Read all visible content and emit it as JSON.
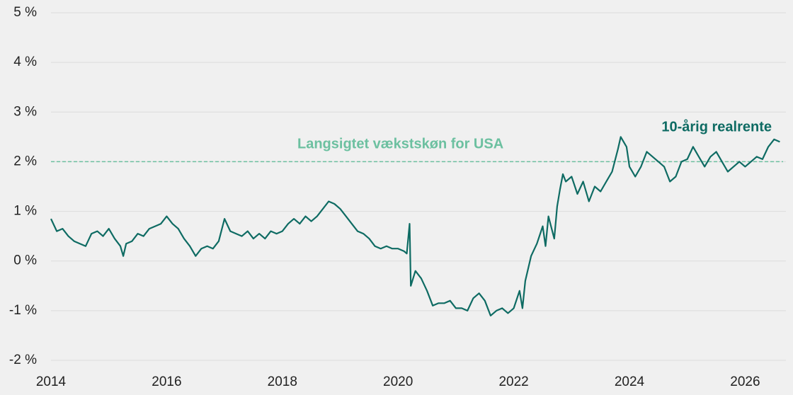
{
  "chart_data": {
    "type": "line",
    "xlim": [
      2014,
      2026.7
    ],
    "xticks": [
      2014,
      2016,
      2018,
      2020,
      2022,
      2024,
      2026
    ],
    "ylim": [
      -2,
      5
    ],
    "yticks": [
      {
        "value": -2,
        "label": "-2 %"
      },
      {
        "value": -1,
        "label": "-1 %"
      },
      {
        "value": 0,
        "label": "0 %"
      },
      {
        "value": 1,
        "label": "1 %"
      },
      {
        "value": 2,
        "label": "2 %"
      },
      {
        "value": 3,
        "label": "3 %"
      },
      {
        "value": 4,
        "label": "4 %"
      },
      {
        "value": 5,
        "label": "5 %"
      }
    ],
    "grid": true,
    "reference_line": {
      "value": 2,
      "label": "Langsigtet vækstskøn for USA",
      "color": "#6cc0a0"
    },
    "series": [
      {
        "name": "10-årig realrente",
        "color": "#0e6b63",
        "x": [
          2014.0,
          2014.1,
          2014.2,
          2014.3,
          2014.4,
          2014.5,
          2014.6,
          2014.7,
          2014.8,
          2014.9,
          2015.0,
          2015.1,
          2015.2,
          2015.25,
          2015.3,
          2015.4,
          2015.5,
          2015.6,
          2015.7,
          2015.8,
          2015.9,
          2016.0,
          2016.1,
          2016.2,
          2016.3,
          2016.4,
          2016.5,
          2016.6,
          2016.7,
          2016.8,
          2016.9,
          2017.0,
          2017.1,
          2017.2,
          2017.3,
          2017.4,
          2017.5,
          2017.6,
          2017.7,
          2017.8,
          2017.9,
          2018.0,
          2018.1,
          2018.2,
          2018.3,
          2018.4,
          2018.5,
          2018.6,
          2018.7,
          2018.8,
          2018.9,
          2019.0,
          2019.1,
          2019.2,
          2019.3,
          2019.4,
          2019.5,
          2019.6,
          2019.7,
          2019.8,
          2019.9,
          2020.0,
          2020.1,
          2020.15,
          2020.2,
          2020.22,
          2020.3,
          2020.4,
          2020.5,
          2020.6,
          2020.7,
          2020.8,
          2020.9,
          2021.0,
          2021.1,
          2021.2,
          2021.3,
          2021.4,
          2021.5,
          2021.6,
          2021.7,
          2021.8,
          2021.9,
          2022.0,
          2022.1,
          2022.15,
          2022.2,
          2022.3,
          2022.4,
          2022.5,
          2022.55,
          2022.6,
          2022.7,
          2022.75,
          2022.8,
          2022.85,
          2022.9,
          2023.0,
          2023.1,
          2023.2,
          2023.3,
          2023.4,
          2023.5,
          2023.6,
          2023.7,
          2023.8,
          2023.85,
          2023.95,
          2024.0,
          2024.1,
          2024.2,
          2024.3,
          2024.4,
          2024.5,
          2024.6,
          2024.7,
          2024.8,
          2024.9,
          2025.0,
          2025.1,
          2025.2,
          2025.3,
          2025.4,
          2025.5,
          2025.6,
          2025.7,
          2025.8,
          2025.9,
          2026.0,
          2026.1,
          2026.2,
          2026.3,
          2026.4,
          2026.5,
          2026.6
        ],
        "values": [
          0.85,
          0.6,
          0.65,
          0.5,
          0.4,
          0.35,
          0.3,
          0.55,
          0.6,
          0.5,
          0.65,
          0.45,
          0.3,
          0.1,
          0.35,
          0.4,
          0.55,
          0.5,
          0.65,
          0.7,
          0.75,
          0.9,
          0.75,
          0.65,
          0.45,
          0.3,
          0.1,
          0.25,
          0.3,
          0.25,
          0.4,
          0.85,
          0.6,
          0.55,
          0.5,
          0.6,
          0.45,
          0.55,
          0.45,
          0.6,
          0.55,
          0.6,
          0.75,
          0.85,
          0.75,
          0.9,
          0.8,
          0.9,
          1.05,
          1.2,
          1.15,
          1.05,
          0.9,
          0.75,
          0.6,
          0.55,
          0.45,
          0.3,
          0.25,
          0.3,
          0.25,
          0.25,
          0.2,
          0.15,
          0.75,
          -0.5,
          -0.2,
          -0.35,
          -0.6,
          -0.9,
          -0.85,
          -0.85,
          -0.8,
          -0.95,
          -0.95,
          -1.0,
          -0.75,
          -0.65,
          -0.8,
          -1.1,
          -1.0,
          -0.95,
          -1.05,
          -0.95,
          -0.6,
          -0.95,
          -0.4,
          0.1,
          0.35,
          0.7,
          0.3,
          0.9,
          0.45,
          1.1,
          1.45,
          1.75,
          1.6,
          1.7,
          1.35,
          1.6,
          1.2,
          1.5,
          1.4,
          1.6,
          1.8,
          2.25,
          2.5,
          2.3,
          1.9,
          1.7,
          1.9,
          2.2,
          2.1,
          2.0,
          1.9,
          1.6,
          1.7,
          2.0,
          2.05,
          2.3,
          2.1,
          1.9,
          2.1,
          2.2,
          2.0,
          1.8,
          1.9,
          2.0,
          1.9,
          2.0,
          2.1,
          2.05,
          2.3,
          2.45,
          2.4
        ]
      }
    ]
  }
}
